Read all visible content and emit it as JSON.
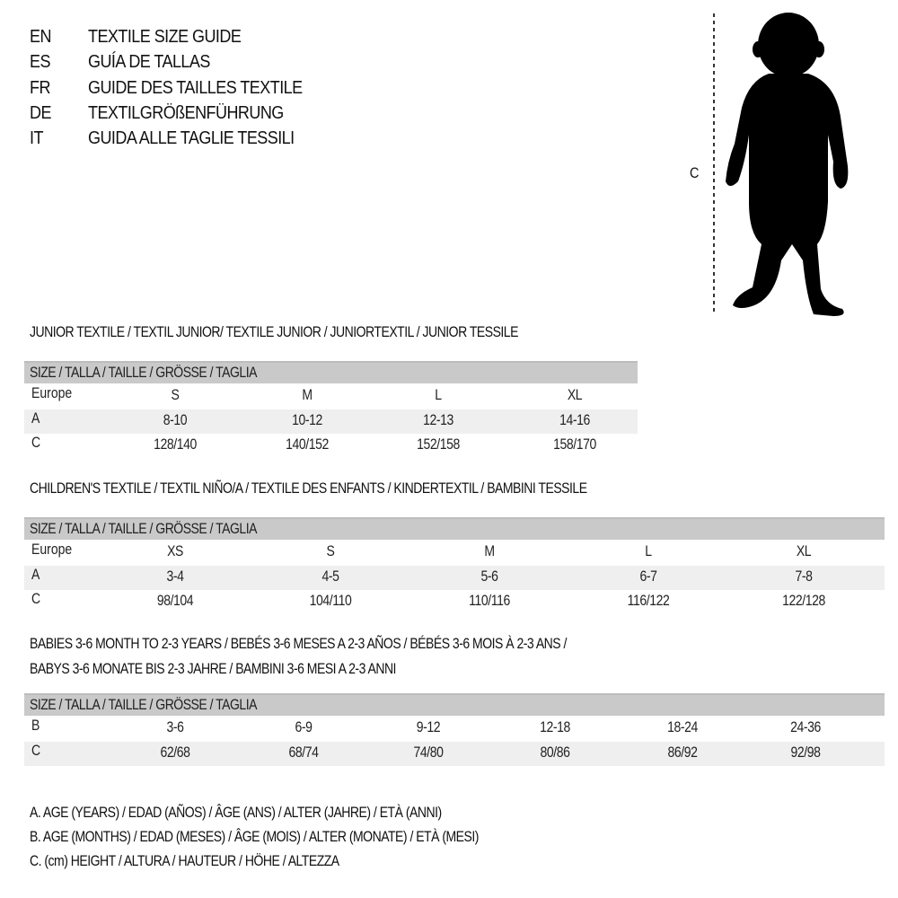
{
  "languages": [
    {
      "code": "EN",
      "title": "TEXTILE SIZE GUIDE"
    },
    {
      "code": "ES",
      "title": "GUÍA DE TALLAS"
    },
    {
      "code": "FR",
      "title": "GUIDE DES TAILLES TEXTILE"
    },
    {
      "code": "DE",
      "title": "TEXTILGRÖßENFÜHRUNG"
    },
    {
      "code": "IT",
      "title": "GUIDA ALLE TAGLIE TESSILI"
    }
  ],
  "figure": {
    "measure_label": "C"
  },
  "junior": {
    "heading": "JUNIOR TEXTILE / TEXTIL JUNIOR/ TEXTILE JUNIOR / JUNIORTEXTIL / JUNIOR TESSILE",
    "band": "SIZE / TALLA / TAILLE / GRÖSSE / TAGLIA",
    "rows": [
      {
        "label": "Europe",
        "values": [
          "S",
          "M",
          "L",
          "XL"
        ]
      },
      {
        "label": "A",
        "values": [
          "8-10",
          "10-12",
          "12-13",
          "14-16"
        ]
      },
      {
        "label": "C",
        "values": [
          "128/140",
          "140/152",
          "152/158",
          "158/170"
        ]
      }
    ]
  },
  "children": {
    "heading": "CHILDREN'S TEXTILE / TEXTIL NIÑO/A / TEXTILE DES ENFANTS / KINDERTEXTIL / BAMBINI TESSILE",
    "band": "SIZE / TALLA / TAILLE / GRÖSSE / TAGLIA",
    "rows": [
      {
        "label": "Europe",
        "values": [
          "XS",
          "S",
          "M",
          "L",
          "XL"
        ]
      },
      {
        "label": "A",
        "values": [
          "3-4",
          "4-5",
          "5-6",
          "6-7",
          "7-8"
        ]
      },
      {
        "label": "C",
        "values": [
          "98/104",
          "104/110",
          "110/116",
          "116/122",
          "122/128"
        ]
      }
    ]
  },
  "babies": {
    "heading_line1": "BABIES 3-6 MONTH TO 2-3 YEARS / BEBÉS 3-6 MESES A 2-3 AÑOS / BÉBÉS 3-6 MOIS À 2-3 ANS /",
    "heading_line2": "BABYS 3-6 MONATE BIS 2-3 JAHRE / BAMBINI 3-6 MESI A 2-3 ANNI",
    "band": "SIZE / TALLA / TAILLE / GRÖSSE / TAGLIA",
    "rows": [
      {
        "label": "B",
        "values": [
          "3-6",
          "6-9",
          "9-12",
          "12-18",
          "18-24",
          "24-36"
        ]
      },
      {
        "label": "C",
        "values": [
          "62/68",
          "68/74",
          "74/80",
          "80/86",
          "86/92",
          "92/98"
        ]
      }
    ]
  },
  "legend": [
    "A. AGE (YEARS) / EDAD (AÑOS) / ÂGE (ANS) / ALTER (JAHRE) / ETÀ (ANNI)",
    "B. AGE (MONTHS) / EDAD (MESES) / ÂGE (MOIS) / ALTER (MONATE) / ETÀ (MESI)",
    "C. (cm) HEIGHT / ALTURA / HAUTEUR / HÖHE / ALTEZZA"
  ]
}
